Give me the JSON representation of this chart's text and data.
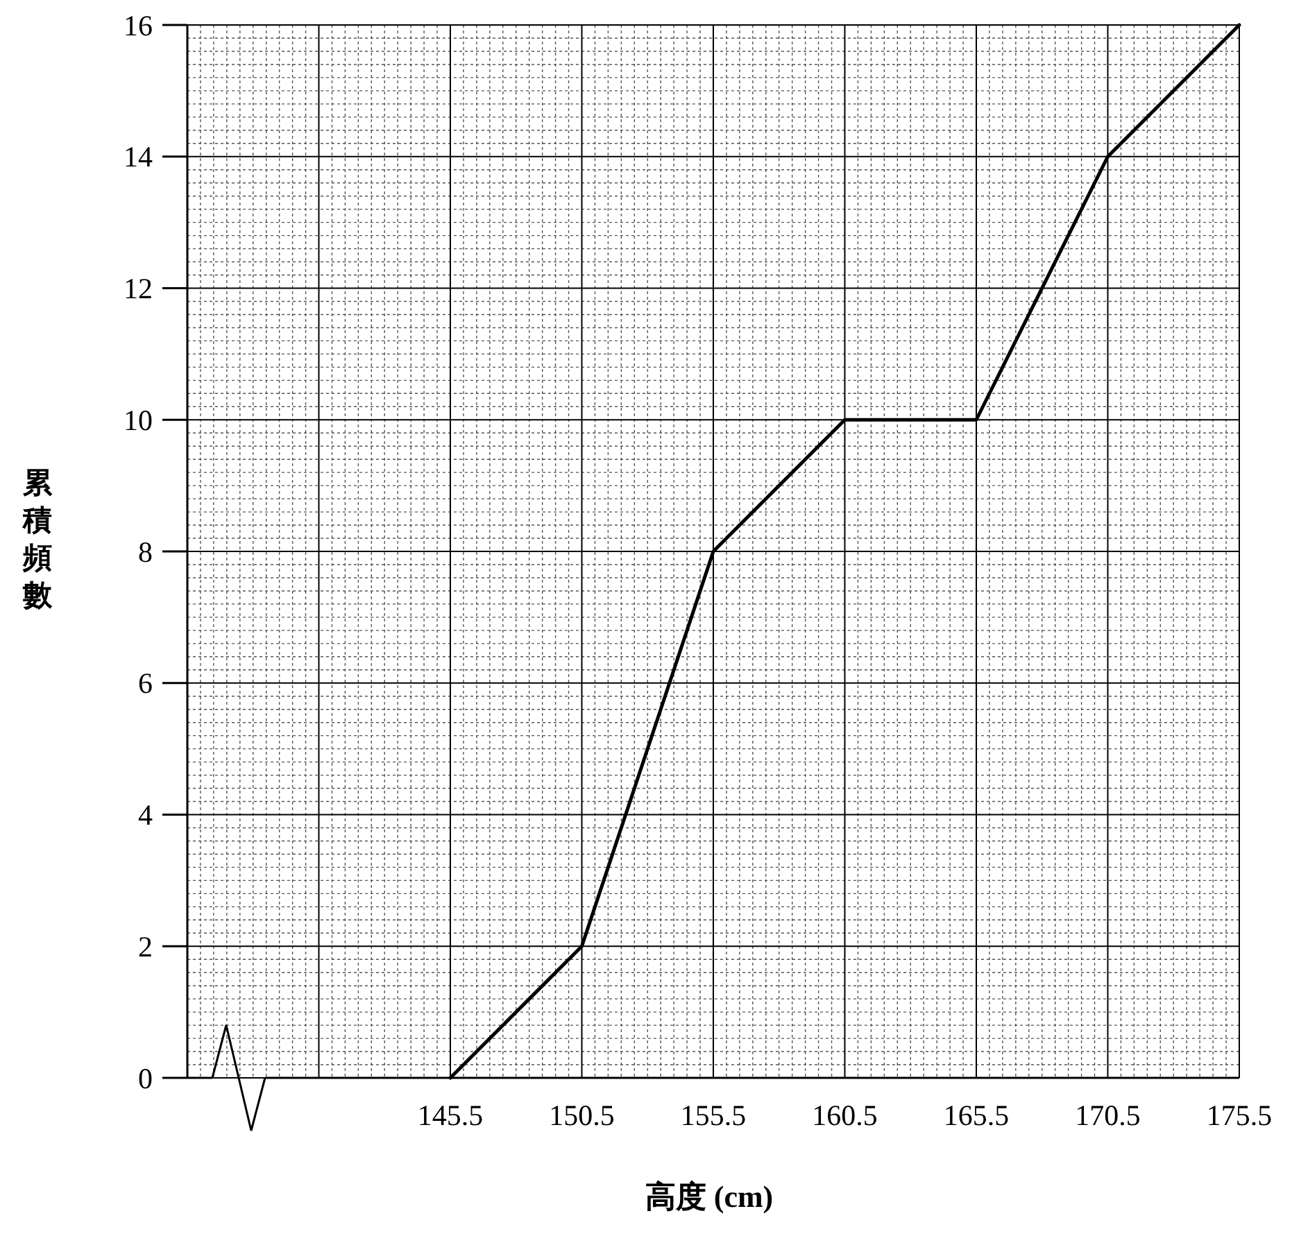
{
  "chart_data": {
    "type": "line",
    "xlabel": "高度 (cm)",
    "ylabel": "累積頻數",
    "x": [
      145.5,
      150.5,
      155.5,
      160.5,
      165.5,
      170.5,
      175.5
    ],
    "series": [
      {
        "color": "#000000",
        "values": [
          0,
          2,
          8,
          10,
          10,
          14,
          16
        ]
      }
    ],
    "xlim": [
      135.5,
      175.5
    ],
    "xticks": [
      {
        "value": 140.5,
        "label": null
      },
      145.5,
      150.5,
      155.5,
      160.5,
      165.5,
      170.5,
      175.5
    ],
    "ylim": [
      0,
      16
    ],
    "yticks": [
      0,
      2,
      4,
      6,
      8,
      10,
      12,
      14,
      16
    ],
    "grid": true,
    "marker": "none",
    "line_style": "solid"
  }
}
